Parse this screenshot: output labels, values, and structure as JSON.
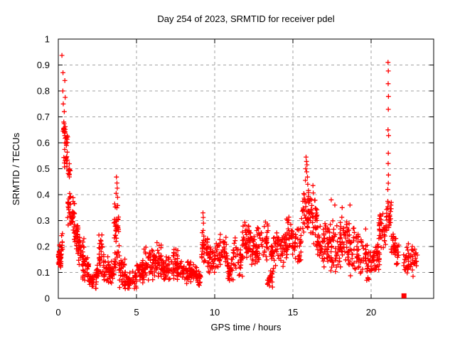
{
  "chart_data": {
    "type": "scatter",
    "title": "Day 254 of 2023, SRMTID for receiver pdel",
    "xlabel": "GPS time / hours",
    "ylabel": "SRMTID / TECUs",
    "xlim": [
      0,
      24
    ],
    "ylim": [
      0,
      1
    ],
    "xticks": {
      "values": [
        0,
        5,
        10,
        15,
        20
      ],
      "labels": [
        "0",
        "5",
        "10",
        "15",
        "20"
      ]
    },
    "yticks": {
      "values": [
        0,
        0.1,
        0.2,
        0.3,
        0.4,
        0.5,
        0.6,
        0.7,
        0.8,
        0.9,
        1
      ],
      "labels": [
        "0",
        "0.1",
        "0.2",
        "0.3",
        "0.4",
        "0.5",
        "0.6",
        "0.7",
        "0.8",
        "0.9",
        "1"
      ]
    },
    "grid": true,
    "legend": "none",
    "series": [
      {
        "name": "SRMTID",
        "marker": "plus",
        "color": "#ff0000",
        "points": [
          [
            0.23,
            0.937
          ],
          [
            0.3,
            0.87
          ],
          [
            0.42,
            0.84
          ],
          [
            0.29,
            0.8
          ],
          [
            0.44,
            0.775
          ],
          [
            0.32,
            0.75
          ],
          [
            0.38,
            0.72
          ],
          [
            0.35,
            0.68
          ],
          [
            3.72,
            0.468
          ],
          [
            3.75,
            0.445
          ],
          [
            3.77,
            0.425
          ],
          [
            3.7,
            0.405
          ],
          [
            3.79,
            0.39
          ],
          [
            9.25,
            0.33
          ],
          [
            9.27,
            0.312
          ],
          [
            9.28,
            0.29
          ],
          [
            9.26,
            0.262
          ],
          [
            9.3,
            0.24
          ],
          [
            15.84,
            0.545
          ],
          [
            15.87,
            0.528
          ],
          [
            15.9,
            0.515
          ],
          [
            15.82,
            0.5
          ],
          [
            15.88,
            0.488
          ],
          [
            15.93,
            0.468
          ],
          [
            15.8,
            0.455
          ],
          [
            15.95,
            0.44
          ],
          [
            16.28,
            0.435
          ],
          [
            17.45,
            0.38
          ],
          [
            17.68,
            0.36
          ],
          [
            18.15,
            0.35
          ],
          [
            18.65,
            0.36
          ],
          [
            21.08,
            0.91
          ],
          [
            21.1,
            0.877
          ],
          [
            21.09,
            0.828
          ],
          [
            21.11,
            0.779
          ],
          [
            21.1,
            0.729
          ],
          [
            21.08,
            0.65
          ],
          [
            21.12,
            0.628
          ],
          [
            21.1,
            0.56
          ],
          [
            21.09,
            0.52
          ],
          [
            21.11,
            0.476
          ],
          [
            21.1,
            0.444
          ],
          [
            21.07,
            0.42
          ]
        ],
        "band_format": "[x_start_hours, x_end_hours, y_min_TECUs, y_max_TECUs, sample_count]",
        "density_bands": [
          [
            0.0,
            0.18,
            0.115,
            0.185,
            40
          ],
          [
            0.05,
            0.28,
            0.15,
            0.27,
            15
          ],
          [
            0.3,
            0.45,
            0.62,
            0.675,
            13
          ],
          [
            0.4,
            0.6,
            0.565,
            0.645,
            13
          ],
          [
            0.35,
            0.6,
            0.5,
            0.57,
            12
          ],
          [
            0.5,
            0.8,
            0.455,
            0.535,
            10
          ],
          [
            0.6,
            1.05,
            0.27,
            0.42,
            40
          ],
          [
            0.95,
            1.35,
            0.17,
            0.3,
            32
          ],
          [
            1.25,
            1.65,
            0.12,
            0.24,
            30
          ],
          [
            1.55,
            2.0,
            0.06,
            0.17,
            32
          ],
          [
            1.95,
            2.45,
            0.03,
            0.1,
            32
          ],
          [
            2.4,
            2.6,
            0.05,
            0.14,
            15
          ],
          [
            2.55,
            2.95,
            0.08,
            0.26,
            30
          ],
          [
            2.9,
            3.25,
            0.05,
            0.17,
            25
          ],
          [
            3.2,
            3.6,
            0.04,
            0.16,
            28
          ],
          [
            3.55,
            3.9,
            0.2,
            0.38,
            32
          ],
          [
            3.6,
            3.92,
            0.1,
            0.22,
            14
          ],
          [
            3.85,
            4.3,
            0.04,
            0.18,
            32
          ],
          [
            4.25,
            5.0,
            0.03,
            0.11,
            45
          ],
          [
            5.0,
            5.5,
            0.05,
            0.16,
            35
          ],
          [
            5.45,
            6.1,
            0.06,
            0.2,
            40
          ],
          [
            6.05,
            6.6,
            0.08,
            0.23,
            40
          ],
          [
            6.55,
            7.1,
            0.055,
            0.17,
            40
          ],
          [
            7.05,
            7.65,
            0.07,
            0.2,
            40
          ],
          [
            7.6,
            8.3,
            0.05,
            0.16,
            45
          ],
          [
            8.25,
            8.85,
            0.045,
            0.15,
            40
          ],
          [
            8.8,
            9.15,
            0.04,
            0.12,
            24
          ],
          [
            9.15,
            9.6,
            0.12,
            0.28,
            30
          ],
          [
            9.55,
            10.2,
            0.09,
            0.22,
            40
          ],
          [
            10.15,
            10.8,
            0.1,
            0.25,
            40
          ],
          [
            10.75,
            11.2,
            0.05,
            0.16,
            30
          ],
          [
            11.15,
            11.8,
            0.08,
            0.25,
            40
          ],
          [
            11.75,
            12.3,
            0.12,
            0.32,
            45
          ],
          [
            12.25,
            12.75,
            0.1,
            0.28,
            35
          ],
          [
            12.7,
            13.45,
            0.12,
            0.31,
            45
          ],
          [
            13.35,
            13.7,
            0.03,
            0.12,
            20
          ],
          [
            13.6,
            14.0,
            0.1,
            0.26,
            30
          ],
          [
            13.95,
            14.6,
            0.12,
            0.28,
            40
          ],
          [
            14.55,
            15.05,
            0.14,
            0.32,
            35
          ],
          [
            15.0,
            15.55,
            0.11,
            0.28,
            35
          ],
          [
            15.55,
            16.1,
            0.24,
            0.43,
            45
          ],
          [
            16.1,
            16.55,
            0.18,
            0.42,
            35
          ],
          [
            16.5,
            17.0,
            0.12,
            0.33,
            35
          ],
          [
            16.95,
            17.45,
            0.1,
            0.3,
            35
          ],
          [
            17.4,
            18.05,
            0.08,
            0.32,
            45
          ],
          [
            18.0,
            18.55,
            0.1,
            0.33,
            40
          ],
          [
            18.5,
            19.15,
            0.06,
            0.3,
            40
          ],
          [
            19.1,
            19.75,
            0.07,
            0.28,
            40
          ],
          [
            19.7,
            20.15,
            0.06,
            0.19,
            30
          ],
          [
            20.1,
            20.55,
            0.09,
            0.23,
            35
          ],
          [
            20.5,
            20.95,
            0.17,
            0.38,
            35
          ],
          [
            20.95,
            21.3,
            0.24,
            0.4,
            30
          ],
          [
            21.25,
            21.55,
            0.13,
            0.28,
            22
          ],
          [
            21.5,
            21.8,
            0.12,
            0.25,
            18
          ],
          [
            22.05,
            22.95,
            0.075,
            0.22,
            55
          ]
        ]
      },
      {
        "name": "flagged-sample",
        "marker": "filled-square",
        "color": "#ff0000",
        "points": [
          [
            22.1,
            0.01
          ]
        ]
      }
    ]
  },
  "style": {
    "marker_color": "#ff0000",
    "grid_color": "#a0a0a0",
    "frame_color": "#000000",
    "text_color": "#000000",
    "background": "#ffffff"
  }
}
